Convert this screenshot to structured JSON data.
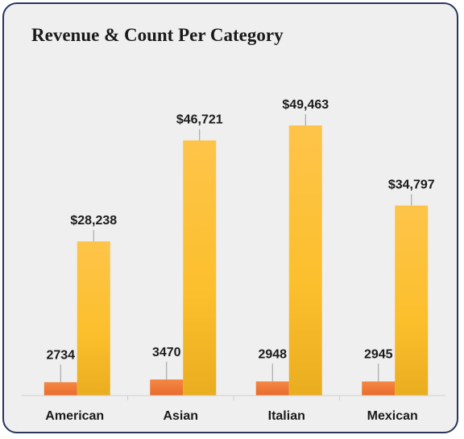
{
  "title": "Revenue & Count Per Category",
  "colors": {
    "count_bar": "#ef7a35",
    "revenue_bar": "#fcc031",
    "background": "#efefef",
    "border": "#27365a"
  },
  "chart_data": {
    "type": "bar",
    "title": "Revenue & Count Per Category",
    "categories": [
      "American",
      "Asian",
      "Italian",
      "Mexican"
    ],
    "series": [
      {
        "key": "count",
        "values": [
          2734,
          3470,
          2948,
          2945
        ],
        "labels": [
          "2734",
          "3470",
          "2948",
          "2945"
        ],
        "color": "#ef7a35"
      },
      {
        "key": "revenue",
        "values": [
          28238,
          46721,
          49463,
          34797
        ],
        "labels": [
          "$28,238",
          "$46,721",
          "$49,463",
          "$34,797"
        ],
        "color": "#fcc031"
      }
    ],
    "legend": "none",
    "grid": false,
    "xlabel": "",
    "ylabel": "",
    "ylim": [
      0,
      52000
    ]
  }
}
